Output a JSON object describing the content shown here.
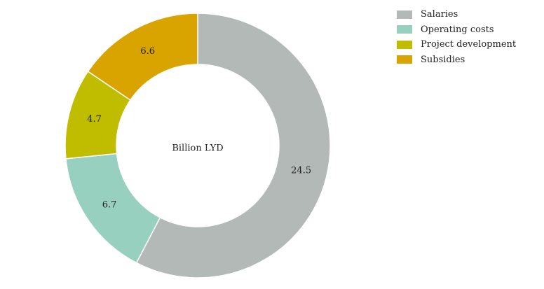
{
  "chart_data": {
    "type": "pie",
    "title": "",
    "center_label": "Billion LYD",
    "categories": [
      "Salaries",
      "Operating costs",
      "Project development",
      "Subsidies"
    ],
    "values": [
      24.5,
      6.7,
      4.7,
      6.6
    ],
    "value_labels": [
      "24.5",
      "6.7",
      "4.7",
      "6.6"
    ],
    "colors": [
      "#b3b9b7",
      "#98d0c0",
      "#c0bd00",
      "#d9a400"
    ],
    "legend_position": "top-right",
    "donut": true
  }
}
